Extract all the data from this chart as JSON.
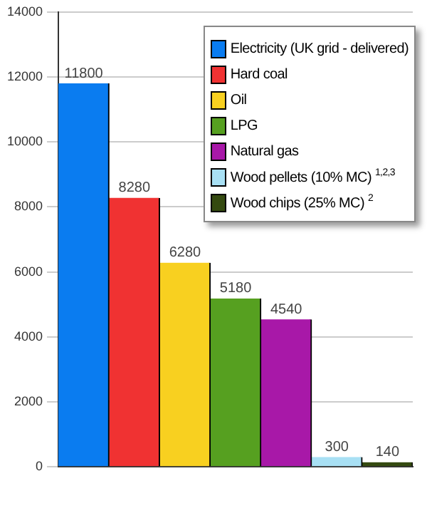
{
  "chart_data": {
    "type": "bar",
    "categories": [
      null,
      null,
      null,
      null,
      null,
      null,
      null
    ],
    "series": [
      {
        "name": "Electricity (UK grid - delivered)",
        "color": "#0a7cf0",
        "values": [
          11800,
          null,
          null,
          null,
          null,
          null,
          null
        ]
      },
      {
        "name": "Hard coal",
        "color": "#f03232",
        "values": [
          null,
          8280,
          null,
          null,
          null,
          null,
          null
        ]
      },
      {
        "name": "Oil",
        "color": "#f8d020",
        "values": [
          null,
          null,
          6280,
          null,
          null,
          null,
          null
        ]
      },
      {
        "name": "LPG",
        "color": "#56a020",
        "values": [
          null,
          null,
          null,
          5180,
          null,
          null,
          null
        ]
      },
      {
        "name": "Natural gas",
        "color": "#a818a8",
        "values": [
          null,
          null,
          null,
          null,
          4540,
          null,
          null
        ]
      },
      {
        "name": "Wood pellets (10% MC) $^{1,2,3}$",
        "color": "#a8e0f4",
        "values": [
          null,
          null,
          null,
          null,
          null,
          300,
          null
        ]
      },
      {
        "name": "Wood chips (25% MC) $^{2}$",
        "color": "#344a10",
        "values": [
          null,
          null,
          null,
          null,
          null,
          null,
          140
        ]
      }
    ],
    "ylim": [
      0,
      14000
    ],
    "yticks": [
      0,
      2000,
      4000,
      6000,
      8000,
      10000,
      12000,
      14000
    ],
    "grid": "y",
    "legend": "top right",
    "data_labels": true
  }
}
